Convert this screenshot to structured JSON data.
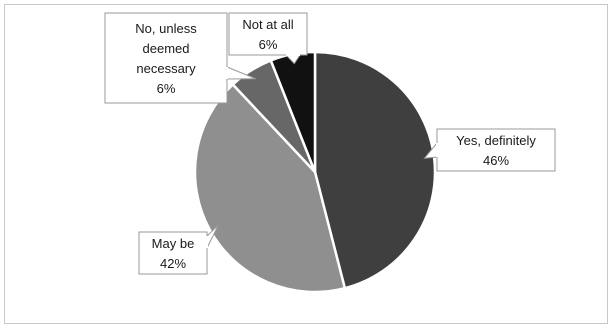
{
  "chart_data": {
    "type": "pie",
    "title": "",
    "start_angle_deg": 0,
    "direction": "clockwise",
    "legend": "none",
    "slices": [
      {
        "label_lines": [
          "Yes, definitely"
        ],
        "label": "Yes, definitely",
        "value": 46,
        "value_label": "46%",
        "color": "#3f3f3f"
      },
      {
        "label_lines": [
          "May be"
        ],
        "label": "May be",
        "value": 42,
        "value_label": "42%",
        "color": "#8f8f8f"
      },
      {
        "label_lines": [
          "No, unless",
          "deemed",
          "necessary"
        ],
        "label": "No, unless deemed necessary",
        "value": 6,
        "value_label": "6%",
        "color": "#676767"
      },
      {
        "label_lines": [
          "Not at all"
        ],
        "label": "Not at all",
        "value": 6,
        "value_label": "6%",
        "color": "#111111"
      }
    ]
  }
}
